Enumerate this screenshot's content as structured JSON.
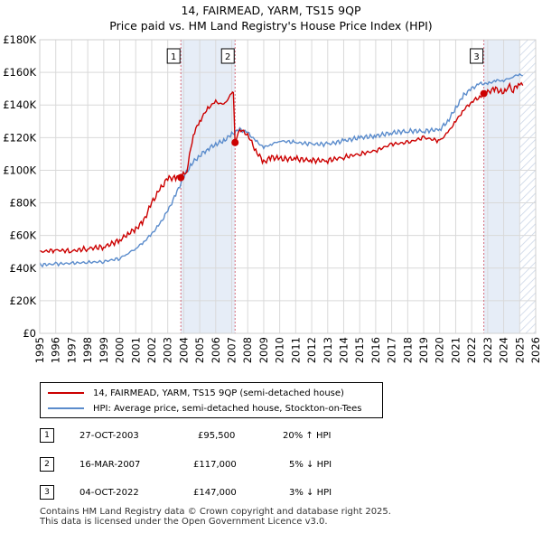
{
  "header": {
    "title": "14, FAIRMEAD, YARM, TS15 9QP",
    "subtitle": "Price paid vs. HM Land Registry's House Price Index (HPI)"
  },
  "colors": {
    "price_line": "#cc0000",
    "hpi_line": "#5b8ccc",
    "shade": "#e6edf7",
    "vline": "#d46a7a"
  },
  "chart_data": {
    "type": "line",
    "title": "Price paid vs. HM Land Registry's House Price Index (HPI)",
    "xlabel": "",
    "ylabel": "",
    "xlim": [
      1995,
      2026
    ],
    "ylim": [
      0,
      180000
    ],
    "grid": true,
    "x_ticks": [
      1995,
      1996,
      1997,
      1998,
      1999,
      2000,
      2001,
      2002,
      2003,
      2004,
      2005,
      2006,
      2007,
      2008,
      2009,
      2010,
      2011,
      2012,
      2013,
      2014,
      2015,
      2016,
      2017,
      2018,
      2019,
      2020,
      2021,
      2022,
      2023,
      2024,
      2025,
      2026
    ],
    "y_ticks": [
      0,
      20000,
      40000,
      60000,
      80000,
      100000,
      120000,
      140000,
      160000,
      180000
    ],
    "y_tick_labels": [
      "£0",
      "£20K",
      "£40K",
      "£60K",
      "£80K",
      "£100K",
      "£120K",
      "£140K",
      "£160K",
      "£180K"
    ],
    "series": [
      {
        "name": "14, FAIRMEAD, YARM, TS15 9QP (semi-detached house)",
        "x": [
          1995.0,
          1996.0,
          1997.0,
          1998.0,
          1999.0,
          2000.0,
          2000.5,
          2001.0,
          2001.5,
          2002.0,
          2002.5,
          2003.0,
          2003.5,
          2003.82,
          2004.2,
          2004.6,
          2005.0,
          2005.5,
          2006.0,
          2006.5,
          2007.0,
          2007.1,
          2007.21,
          2007.5,
          2008.0,
          2008.5,
          2009.0,
          2009.5,
          2010.0,
          2011.0,
          2012.0,
          2013.0,
          2014.0,
          2015.0,
          2016.0,
          2017.0,
          2018.0,
          2019.0,
          2020.0,
          2020.5,
          2021.0,
          2021.5,
          2022.0,
          2022.5,
          2022.76,
          2023.0,
          2023.5,
          2024.0,
          2024.3,
          2024.6,
          2025.0,
          2025.2
        ],
        "values": [
          50000,
          51000,
          50500,
          52000,
          53000,
          57000,
          61000,
          64000,
          69000,
          80000,
          88000,
          95000,
          95500,
          95500,
          100000,
          122000,
          130000,
          138000,
          142000,
          140000,
          147000,
          148000,
          117000,
          125000,
          122000,
          112000,
          105000,
          108000,
          107000,
          107000,
          106000,
          106000,
          108000,
          110000,
          112000,
          116000,
          117000,
          120000,
          118000,
          123000,
          130000,
          137000,
          142000,
          145000,
          147000,
          148000,
          150000,
          147000,
          152000,
          149000,
          154000,
          152000
        ]
      },
      {
        "name": "HPI: Average price, semi-detached house, Stockton-on-Tees",
        "x": [
          1995.0,
          1996.0,
          1997.0,
          1998.0,
          1999.0,
          2000.0,
          2000.5,
          2001.0,
          2001.5,
          2002.0,
          2002.5,
          2003.0,
          2003.5,
          2004.0,
          2004.5,
          2005.0,
          2005.5,
          2006.0,
          2006.5,
          2007.0,
          2007.5,
          2008.0,
          2008.5,
          2009.0,
          2009.5,
          2010.0,
          2011.0,
          2012.0,
          2013.0,
          2014.0,
          2015.0,
          2016.0,
          2017.0,
          2018.0,
          2019.0,
          2020.0,
          2020.5,
          2021.0,
          2021.5,
          2022.0,
          2022.5,
          2023.0,
          2023.5,
          2024.0,
          2024.5,
          2025.0,
          2025.2
        ],
        "values": [
          42000,
          42500,
          43000,
          43500,
          44000,
          46000,
          49000,
          52000,
          56000,
          61000,
          67000,
          75000,
          85000,
          96000,
          104000,
          109000,
          113000,
          116000,
          118000,
          122000,
          125000,
          123000,
          118000,
          114000,
          116000,
          118000,
          117000,
          116000,
          116000,
          118000,
          120000,
          121000,
          123000,
          124000,
          124000,
          125000,
          130000,
          138000,
          146000,
          150000,
          153000,
          153000,
          155000,
          155000,
          157000,
          159000,
          158000
        ]
      }
    ],
    "transaction_markers": [
      {
        "label": "1",
        "x": 2003.82,
        "value": 95500
      },
      {
        "label": "2",
        "x": 2007.21,
        "value": 117000
      },
      {
        "label": "3",
        "x": 2022.76,
        "value": 147000
      }
    ],
    "hatched_after": 2025.0
  },
  "legend": {
    "items": [
      {
        "label": "14, FAIRMEAD, YARM, TS15 9QP (semi-detached house)"
      },
      {
        "label": "HPI: Average price, semi-detached house, Stockton-on-Tees"
      }
    ]
  },
  "transactions": [
    {
      "num": "1",
      "date": "27-OCT-2003",
      "price": "£95,500",
      "hpi": "20% ↑ HPI"
    },
    {
      "num": "2",
      "date": "16-MAR-2007",
      "price": "£117,000",
      "hpi": "5% ↓ HPI"
    },
    {
      "num": "3",
      "date": "04-OCT-2022",
      "price": "£147,000",
      "hpi": "3% ↓ HPI"
    }
  ],
  "footer": {
    "line1": "Contains HM Land Registry data © Crown copyright and database right 2025.",
    "line2": "This data is licensed under the Open Government Licence v3.0."
  }
}
